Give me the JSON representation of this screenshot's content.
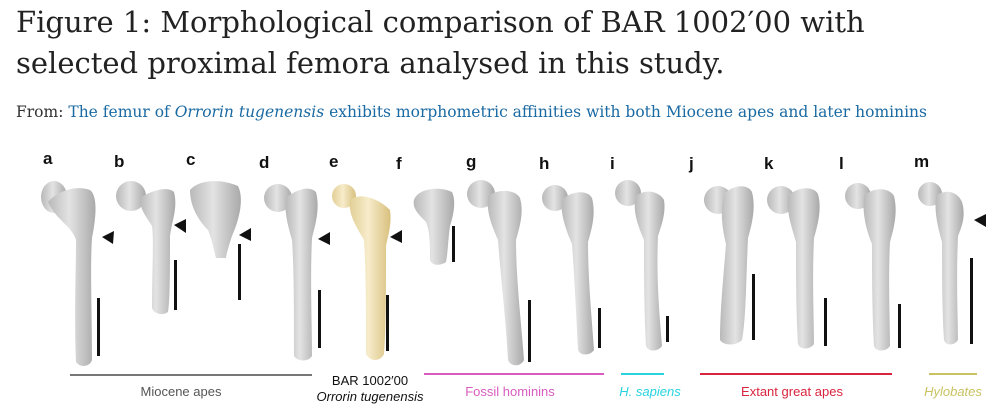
{
  "figure": {
    "title": "Figure 1: Morphological comparison of BAR 1002′00 with selected proximal femora analysed in this study.",
    "from_label": "From:",
    "link_text_1": "The femur of ",
    "link_italic": "Orrorin tugenensis",
    "link_text_2": " exhibits morphometric affinities with both Miocene apes and later hominins"
  },
  "panels": [
    "a",
    "b",
    "c",
    "d",
    "e",
    "f",
    "g",
    "h",
    "i",
    "j",
    "k",
    "l",
    "m"
  ],
  "groups": {
    "miocene": "Miocene apes",
    "bar_line1": "BAR 1002′00",
    "bar_line2": "Orrorin tugenensis",
    "fossil": "Fossil hominins",
    "sapiens": "H. sapiens",
    "great_apes": "Extant great apes",
    "hylobates": "Hylobates"
  },
  "colors": {
    "bone": "#d2d2d2",
    "bone_highlight": "#f2e6c0",
    "miocene": "#777777",
    "fossil": "#d85bbf",
    "sapiens": "#27d4e0",
    "great_apes": "#d8243e",
    "hylobates": "#c9c262",
    "link": "#1a6aa3"
  }
}
